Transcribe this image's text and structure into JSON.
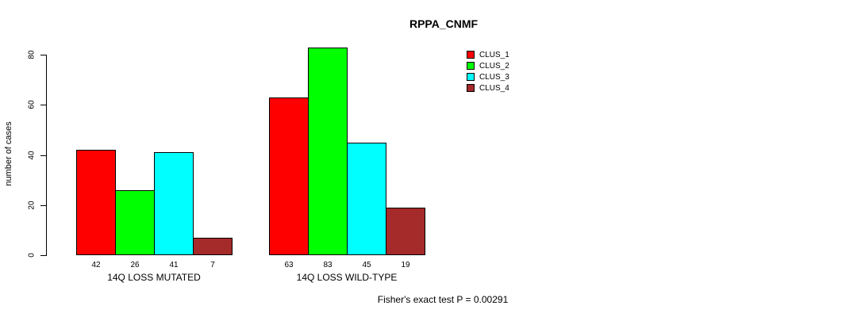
{
  "chart_data": {
    "type": "bar",
    "title": "RPPA_CNMF",
    "ylabel": "number of cases",
    "xlabel": "",
    "categories": [
      "14Q LOSS MUTATED",
      "14Q LOSS WILD-TYPE"
    ],
    "series": [
      {
        "name": "CLUS_1",
        "color": "#ff0000",
        "values": [
          42,
          63
        ]
      },
      {
        "name": "CLUS_2",
        "color": "#00ff00",
        "values": [
          26,
          83
        ]
      },
      {
        "name": "CLUS_3",
        "color": "#00ffff",
        "values": [
          41,
          45
        ]
      },
      {
        "name": "CLUS_4",
        "color": "#a52a2a",
        "values": [
          7,
          19
        ]
      }
    ],
    "yticks": [
      0,
      20,
      40,
      60,
      80
    ],
    "ylim": [
      0,
      85
    ],
    "grid": false,
    "legend_position": "top-right",
    "bar_value_labels_shown": true,
    "annotation": "Fisher's exact test P = 0.00291"
  }
}
